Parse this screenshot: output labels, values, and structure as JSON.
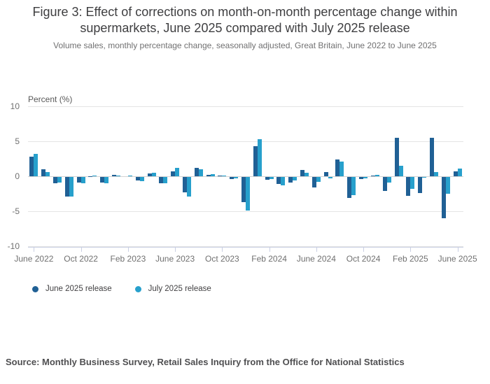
{
  "header": {
    "title": "Figure 3: Effect of corrections on month-on-month percentage change within supermarkets, June 2025 compared with July 2025 release",
    "subtitle": "Volume sales, monthly percentage change, seasonally adjusted, Great Britain, June 2022 to June 2025"
  },
  "chart_data": {
    "type": "bar",
    "title": "Figure 3: Effect of corrections on month-on-month percentage change within supermarkets, June 2025 compared with July 2025 release",
    "subtitle": "Volume sales, monthly percentage change, seasonally adjusted, Great Britain, June 2022 to June 2025",
    "ylabel": "Percent (%)",
    "xlabel": "",
    "ylim": [
      -10,
      10
    ],
    "yticks": [
      10,
      5,
      0,
      -5,
      -10
    ],
    "grid": "horizontal",
    "legend_position": "bottom-left",
    "axis_color": "#c9cfe3",
    "categories": [
      "Jun 2022",
      "Jul 2022",
      "Aug 2022",
      "Sep 2022",
      "Oct 2022",
      "Nov 2022",
      "Dec 2022",
      "Jan 2023",
      "Feb 2023",
      "Mar 2023",
      "Apr 2023",
      "May 2023",
      "Jun 2023",
      "Jul 2023",
      "Aug 2023",
      "Sep 2023",
      "Oct 2023",
      "Nov 2023",
      "Dec 2023",
      "Jan 2024",
      "Feb 2024",
      "Mar 2024",
      "Apr 2024",
      "May 2024",
      "Jun 2024",
      "Jul 2024",
      "Aug 2024",
      "Sep 2024",
      "Oct 2024",
      "Nov 2024",
      "Dec 2024",
      "Jan 2025",
      "Feb 2025",
      "Mar 2025",
      "Apr 2025",
      "May 2025",
      "Jun 2025"
    ],
    "xticks": [
      {
        "index": 0,
        "label": "June 2022"
      },
      {
        "index": 4,
        "label": "Oct 2022"
      },
      {
        "index": 8,
        "label": "Feb 2023"
      },
      {
        "index": 12,
        "label": "June 2023"
      },
      {
        "index": 16,
        "label": "Oct 2023"
      },
      {
        "index": 20,
        "label": "Feb 2024"
      },
      {
        "index": 24,
        "label": "June 2024"
      },
      {
        "index": 28,
        "label": "Oct 2024"
      },
      {
        "index": 32,
        "label": "Feb 2025"
      },
      {
        "index": 36,
        "label": "June 2025"
      }
    ],
    "series": [
      {
        "name": "June 2025 release",
        "color": "#206095",
        "values": [
          2.85,
          1.0,
          -0.85,
          -2.8,
          -0.8,
          0.05,
          -0.75,
          0.25,
          0.0,
          -0.5,
          0.4,
          -0.85,
          0.7,
          -2.2,
          1.2,
          0.25,
          0.15,
          -0.3,
          -3.6,
          4.3,
          -0.4,
          -1.0,
          -0.75,
          0.9,
          -1.5,
          0.6,
          2.4,
          -3.0,
          -0.25,
          0.1,
          -2.0,
          5.5,
          -2.65,
          -2.3,
          5.5,
          -5.9,
          0.7
        ]
      },
      {
        "name": "July 2025 release",
        "color": "#27A0CC",
        "values": [
          3.25,
          0.65,
          -0.8,
          -2.8,
          -0.9,
          0.15,
          -0.9,
          0.15,
          0.15,
          -0.55,
          0.5,
          -0.85,
          1.25,
          -2.75,
          1.0,
          0.35,
          0.1,
          -0.2,
          -4.75,
          5.3,
          -0.25,
          -1.2,
          -0.5,
          0.55,
          -0.65,
          -0.15,
          2.15,
          -2.6,
          -0.15,
          0.2,
          -0.75,
          1.5,
          -1.65,
          -0.1,
          0.65,
          -2.4,
          1.15
        ]
      }
    ]
  },
  "footer": {
    "source": "Source: Monthly Business Survey, Retail Sales Inquiry from the Office for National Statistics"
  }
}
